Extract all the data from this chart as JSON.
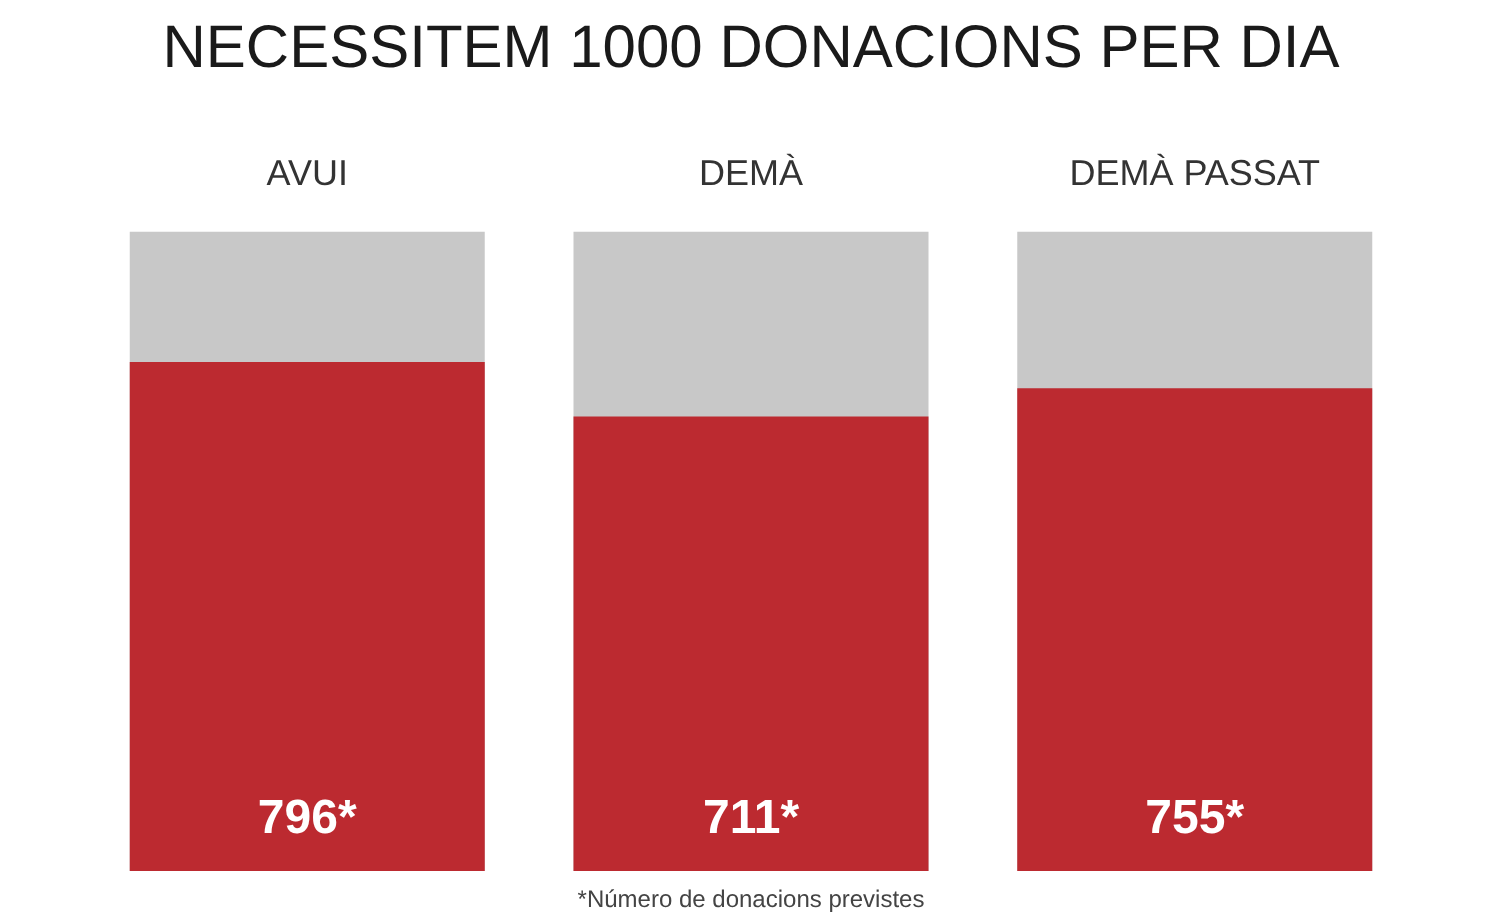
{
  "chart_data": {
    "type": "bar",
    "title": "NECESSITEM 1000 DONACIONS PER DIA",
    "categories": [
      "AVUI",
      "DEMÀ",
      "DEMÀ PASSAT"
    ],
    "values": [
      796,
      711,
      755
    ],
    "value_labels": [
      "796*",
      "711*",
      "755*"
    ],
    "color": "#bc2a30",
    "ylim": [
      0,
      1000
    ],
    "annotations": [
      "*Número de donacions previstes"
    ]
  }
}
